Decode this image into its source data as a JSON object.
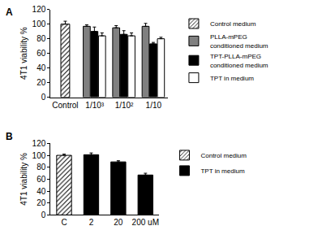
{
  "chart_data": [
    {
      "type": "bar",
      "panel_label": "A",
      "y_label": "4T1 viability %",
      "categories": [
        "Control",
        "1/10³",
        "1/10²",
        "1/10"
      ],
      "ylim": [
        0,
        120
      ],
      "yticks": [
        0,
        20,
        40,
        60,
        80,
        100,
        120
      ],
      "grid": false,
      "legend": "right",
      "series": [
        {
          "name": "Control medium",
          "color": "#ffffff",
          "marker": "hatched",
          "values": [
            100,
            null,
            null,
            null
          ],
          "errors": [
            4,
            null,
            null,
            null
          ]
        },
        {
          "name": "PLLA-mPEG conditioned medium",
          "color": "#808080",
          "values": [
            null,
            97,
            95,
            97
          ],
          "errors": [
            null,
            2,
            3,
            4
          ]
        },
        {
          "name": "TPT-PLLA-mPEG conditioned medium",
          "color": "#000000",
          "values": [
            null,
            90,
            86,
            73
          ],
          "errors": [
            null,
            6,
            5,
            2
          ]
        },
        {
          "name": "TPT in medium",
          "color": "#ffffff",
          "values": [
            null,
            84,
            84,
            80
          ],
          "errors": [
            null,
            4,
            4,
            2
          ]
        }
      ]
    },
    {
      "type": "bar",
      "panel_label": "B",
      "y_label": "4T1 viability %",
      "categories": [
        "C",
        "2",
        "20",
        "200 uM"
      ],
      "ylim": [
        0,
        120
      ],
      "yticks": [
        0,
        20,
        40,
        60,
        80,
        100,
        120
      ],
      "grid": false,
      "legend": "right",
      "series": [
        {
          "name": "Control medium",
          "color": "#ffffff",
          "marker": "hatched",
          "values": [
            100,
            null,
            null,
            null
          ],
          "errors": [
            2,
            null,
            null,
            null
          ]
        },
        {
          "name": "TPT in medium",
          "color": "#000000",
          "values": [
            null,
            101,
            89,
            67
          ],
          "errors": [
            null,
            3,
            2,
            3
          ]
        }
      ]
    }
  ]
}
